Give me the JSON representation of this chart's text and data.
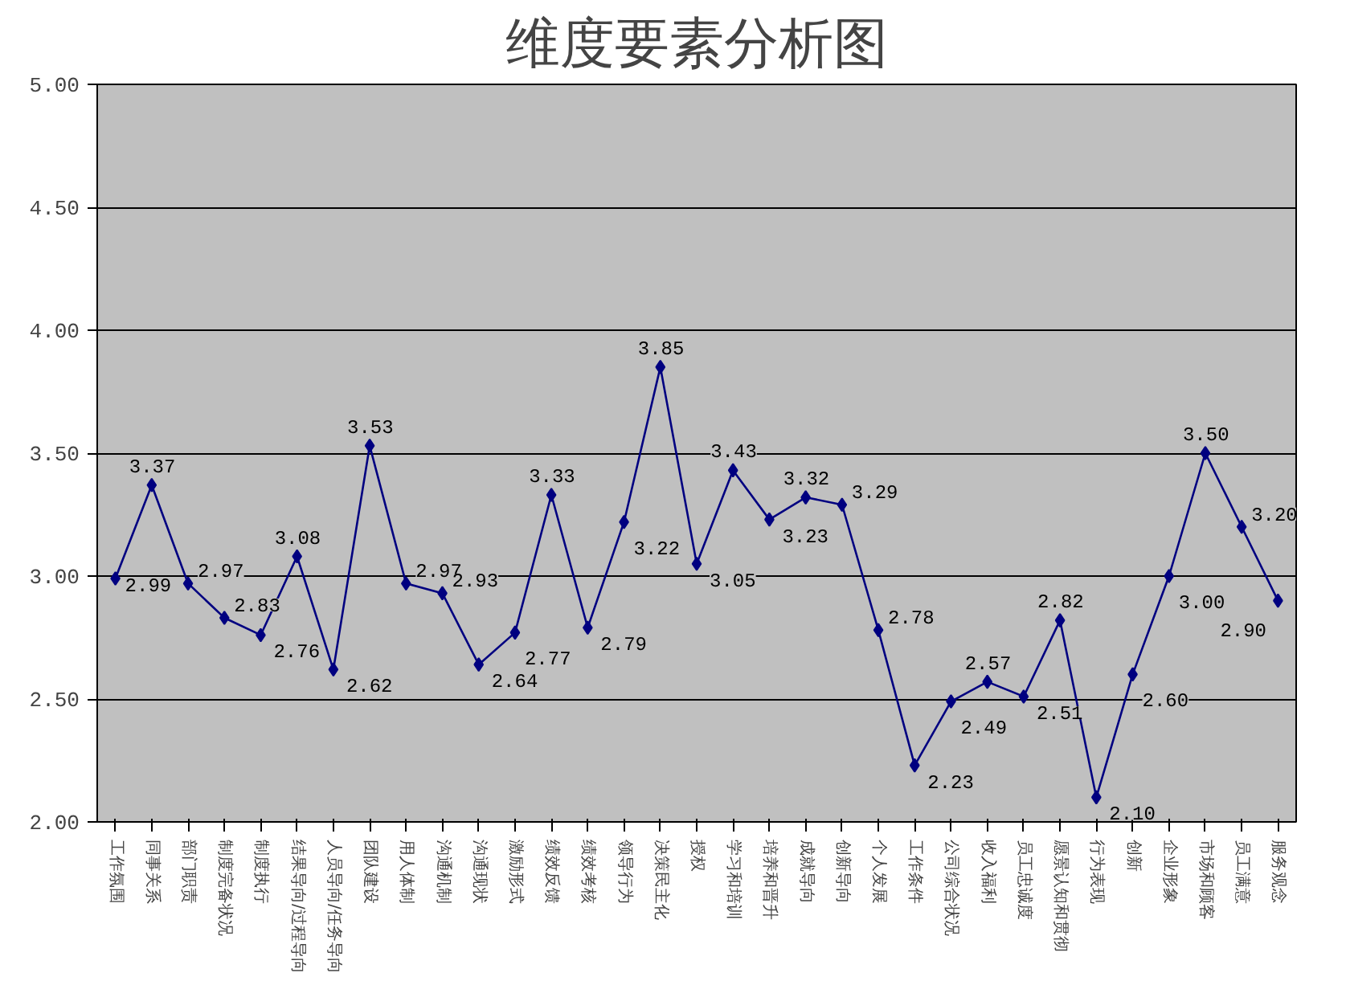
{
  "chart_data": {
    "type": "line",
    "title": "维度要素分析图",
    "categories": [
      "工作氛围",
      "同事关系",
      "部门职责",
      "制度完备状况",
      "制度执行",
      "结果导向/过程导向",
      "人员导向/任务导向",
      "团队建设",
      "用人体制",
      "沟通机制",
      "沟通现状",
      "激励形式",
      "绩效反馈",
      "绩效考核",
      "领导行为",
      "决策民主化",
      "授权",
      "学习和培训",
      "培养和晋升",
      "成就导向",
      "创新导向",
      "个人发展",
      "工作条件",
      "公司综合状况",
      "收入福利",
      "员工忠诚度",
      "愿景认知和贯彻",
      "行为表现",
      "创新",
      "企业形象",
      "市场和顾客",
      "员工满意",
      "服务观念"
    ],
    "series": [
      {
        "color": "#000080",
        "values": [
          2.99,
          3.37,
          2.97,
          2.83,
          2.76,
          3.08,
          2.62,
          3.53,
          2.97,
          2.93,
          2.64,
          2.77,
          3.33,
          2.79,
          3.22,
          3.85,
          3.05,
          3.43,
          3.23,
          3.32,
          3.29,
          2.78,
          2.23,
          2.49,
          2.57,
          2.51,
          2.82,
          2.1,
          2.6,
          3.0,
          3.5,
          3.2,
          2.9
        ]
      }
    ],
    "ylim": [
      2.0,
      5.0
    ],
    "yticks": [
      {
        "value": 2.0,
        "label": "2.00"
      },
      {
        "value": 2.5,
        "label": "2.50"
      },
      {
        "value": 3.0,
        "label": "3.00"
      },
      {
        "value": 3.5,
        "label": "3.50"
      },
      {
        "value": 4.0,
        "label": "4.00"
      },
      {
        "value": 4.5,
        "label": "4.50"
      },
      {
        "value": 5.0,
        "label": "5.00"
      }
    ],
    "value_labels": [
      "2.99",
      "3.37",
      "2.97",
      "2.83",
      "2.76",
      "3.08",
      "2.62",
      "3.53",
      "2.97",
      "2.93",
      "2.64",
      "2.77",
      "3.33",
      "2.79",
      "3.22",
      "3.85",
      "3.05",
      "3.43",
      "3.23",
      "3.32",
      "3.29",
      "2.78",
      "2.23",
      "2.49",
      "2.57",
      "2.51",
      "2.82",
      "2.10",
      "2.60",
      "3.00",
      "3.50",
      "3.20",
      "2.90"
    ],
    "grid": "y",
    "marker": "diamond",
    "line_style": "solid"
  }
}
